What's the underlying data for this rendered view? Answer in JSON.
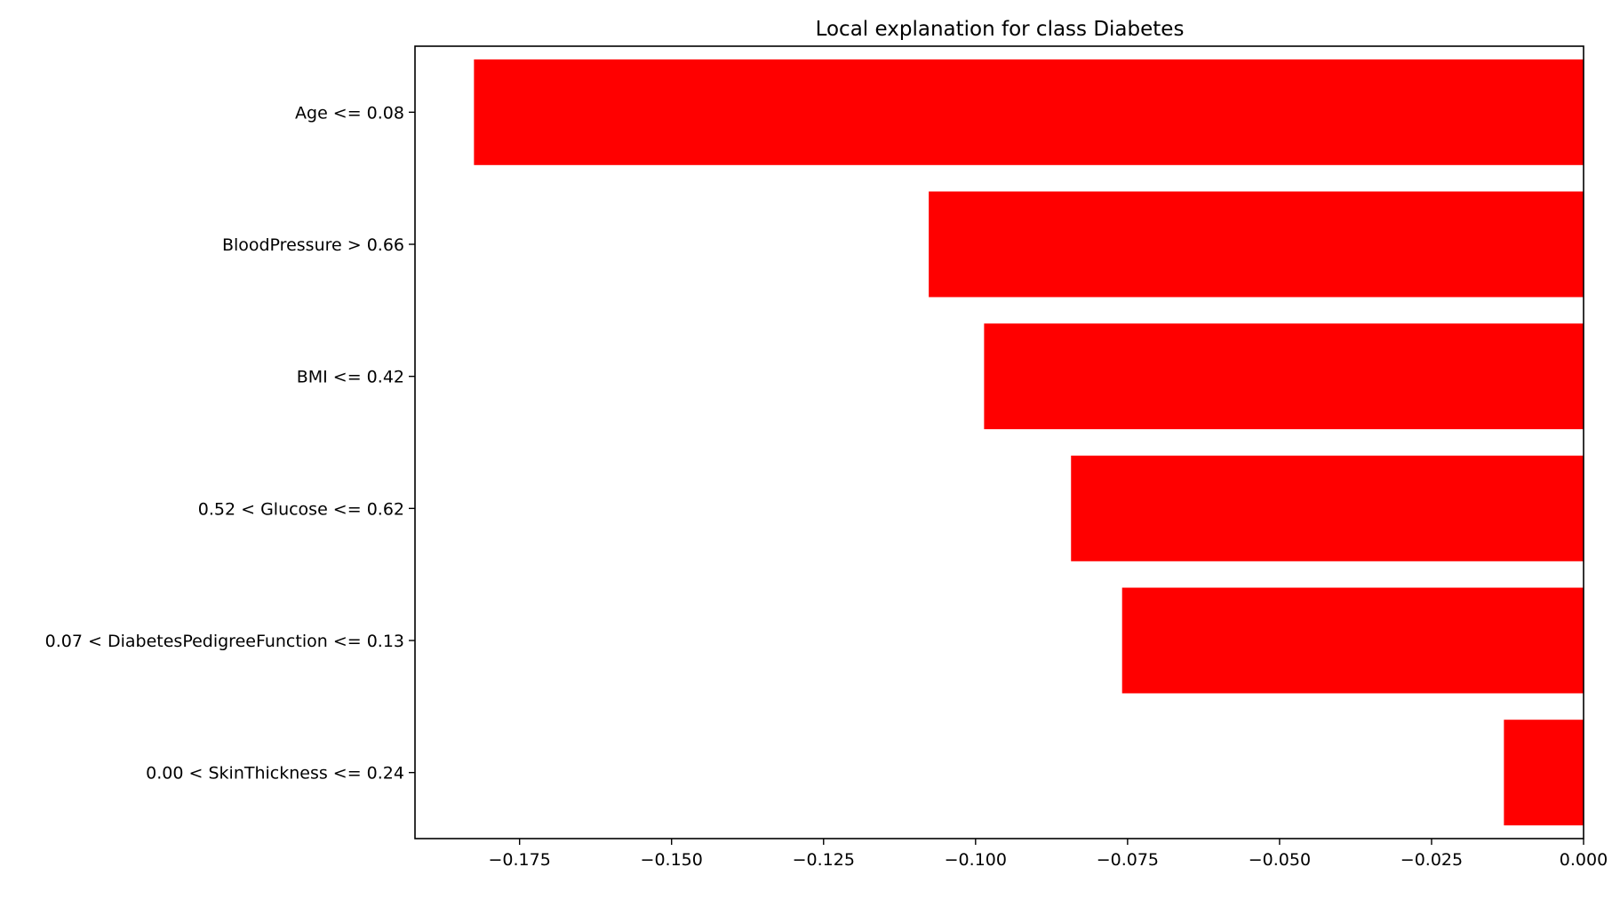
{
  "chart_data": {
    "type": "bar",
    "orientation": "horizontal",
    "title": "Local explanation for class Diabetes",
    "xlabel": "",
    "ylabel": "",
    "categories": [
      "Age <= 0.08",
      "BloodPressure > 0.66",
      "BMI <= 0.42",
      "0.52 < Glucose <= 0.62",
      "0.07 < DiabetesPedigreeFunction <= 0.13",
      "0.00 < SkinThickness <= 0.24"
    ],
    "values": [
      -0.1825,
      -0.1077,
      -0.0986,
      -0.0843,
      -0.0759,
      -0.0131
    ],
    "xlim": [
      -0.1922,
      0.0
    ],
    "xticks": [
      -0.175,
      -0.15,
      -0.125,
      -0.1,
      -0.075,
      -0.05,
      -0.025,
      0.0
    ],
    "xtick_labels": [
      "−0.175",
      "−0.150",
      "−0.125",
      "−0.100",
      "−0.075",
      "−0.050",
      "−0.025",
      "0.000"
    ],
    "grid": false,
    "bar_color": "#ff0000"
  }
}
